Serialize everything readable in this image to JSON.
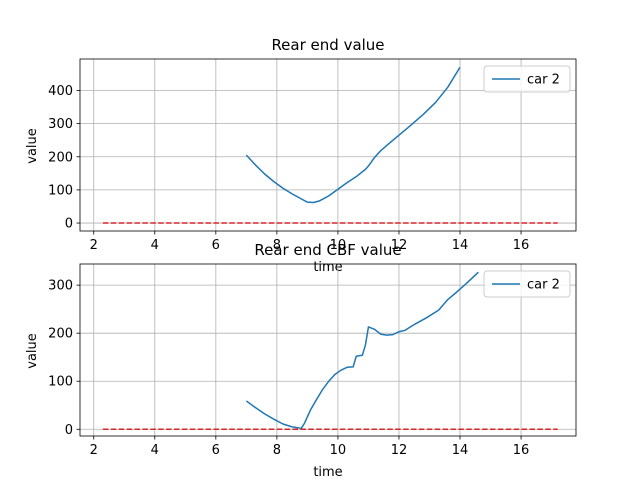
{
  "chart_data": [
    {
      "type": "line",
      "title": "Rear end value",
      "xlabel": "time",
      "ylabel": "value",
      "xlim": [
        1.55,
        17.8
      ],
      "ylim": [
        -24,
        495
      ],
      "xticks": [
        2,
        4,
        6,
        8,
        10,
        12,
        14,
        16
      ],
      "yticks": [
        0,
        100,
        200,
        300,
        400
      ],
      "grid": true,
      "legend": {
        "position": "top-right",
        "entries": [
          "car 2"
        ]
      },
      "series": [
        {
          "name": "car 2",
          "color": "#1f77b4",
          "style": "solid",
          "x": [
            7.0,
            7.3,
            7.6,
            7.9,
            8.2,
            8.5,
            8.8,
            9.0,
            9.2,
            9.4,
            9.7,
            10.0,
            10.3,
            10.6,
            10.9,
            11.0,
            11.2,
            11.4,
            11.7,
            12.0,
            12.4,
            12.8,
            13.2,
            13.6,
            14.0
          ],
          "y": [
            205,
            175,
            148,
            125,
            105,
            88,
            73,
            63,
            62,
            67,
            82,
            102,
            122,
            140,
            162,
            172,
            198,
            218,
            242,
            265,
            296,
            328,
            364,
            410,
            470
          ]
        },
        {
          "name": "",
          "color": "#d62728",
          "style": "dashed",
          "x": [
            2.3,
            17.2
          ],
          "y": [
            0,
            0
          ]
        }
      ]
    },
    {
      "type": "line",
      "title": "Rear end CBF value",
      "xlabel": "time",
      "ylabel": "value",
      "xlim": [
        1.55,
        17.8
      ],
      "ylim": [
        -14,
        344
      ],
      "xticks": [
        2,
        4,
        6,
        8,
        10,
        12,
        14,
        16
      ],
      "yticks": [
        0,
        100,
        200,
        300
      ],
      "grid": true,
      "legend": {
        "position": "top-right",
        "entries": [
          "car 2"
        ]
      },
      "series": [
        {
          "name": "car 2",
          "color": "#1f77b4",
          "style": "solid",
          "x": [
            7.0,
            7.3,
            7.6,
            7.9,
            8.2,
            8.5,
            8.8,
            8.9,
            9.1,
            9.3,
            9.5,
            9.7,
            9.9,
            10.1,
            10.3,
            10.5,
            10.6,
            10.8,
            10.9,
            11.0,
            11.2,
            11.4,
            11.6,
            11.8,
            12.0,
            12.2,
            12.5,
            12.9,
            13.3,
            13.6,
            13.9,
            14.2,
            14.6
          ],
          "y": [
            59,
            45,
            32,
            21,
            11,
            5,
            2,
            12,
            40,
            62,
            83,
            100,
            114,
            123,
            129,
            130,
            152,
            154,
            175,
            213,
            208,
            198,
            196,
            197,
            203,
            206,
            218,
            232,
            248,
            270,
            286,
            303,
            327
          ]
        },
        {
          "name": "",
          "color": "#d62728",
          "style": "dashed",
          "x": [
            2.3,
            17.2
          ],
          "y": [
            0,
            0
          ]
        }
      ]
    }
  ]
}
